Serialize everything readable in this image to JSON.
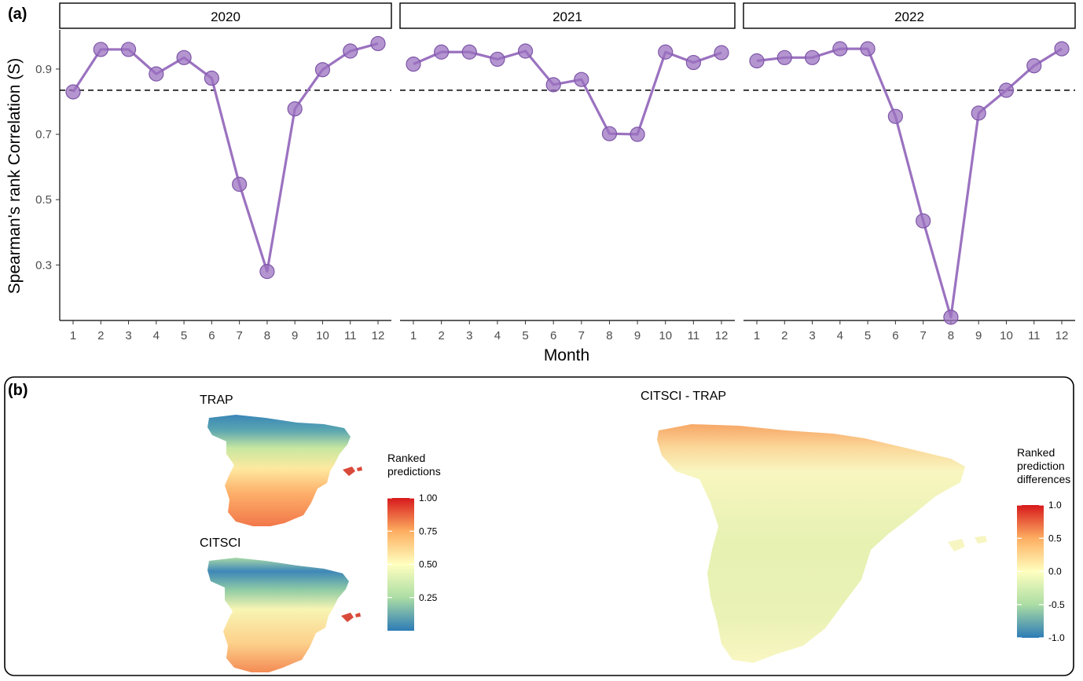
{
  "panel_a": {
    "label": "(a)"
  },
  "panel_b": {
    "label": "(b)"
  },
  "chart_data": {
    "type": "line",
    "facet_by": "year",
    "xlabel": "Month",
    "ylabel": "Spearman's rank Correlation (S)",
    "x": [
      1,
      2,
      3,
      4,
      5,
      6,
      7,
      8,
      9,
      10,
      11,
      12
    ],
    "x_tick_labels": [
      "1",
      "2",
      "3",
      "4",
      "5",
      "6",
      "7",
      "8",
      "9",
      "10",
      "11",
      "12"
    ],
    "ylim": [
      0.13,
      1.02
    ],
    "y_ticks": [
      0.3,
      0.5,
      0.7,
      0.9
    ],
    "y_tick_labels": [
      "0.3",
      "0.5",
      "0.7",
      "0.9"
    ],
    "reference_line": {
      "y": 0.835,
      "style": "dashed",
      "color": "#000000"
    },
    "series_color": "#9B72C0",
    "grid": false,
    "facets": [
      {
        "name": "2020",
        "values": [
          0.83,
          0.96,
          0.96,
          0.885,
          0.935,
          0.872,
          0.547,
          0.28,
          0.778,
          0.898,
          0.955,
          0.978
        ]
      },
      {
        "name": "2021",
        "values": [
          0.915,
          0.952,
          0.952,
          0.93,
          0.955,
          0.852,
          0.868,
          0.702,
          0.7,
          0.952,
          0.92,
          0.95
        ]
      },
      {
        "name": "2022",
        "values": [
          0.925,
          0.935,
          0.935,
          0.962,
          0.962,
          0.755,
          0.435,
          0.14,
          0.765,
          0.835,
          0.91,
          0.962
        ]
      }
    ]
  },
  "maps": {
    "trap": {
      "title": "TRAP"
    },
    "citsci": {
      "title": "CITSCI"
    },
    "diff": {
      "title": "CITSCI - TRAP"
    }
  },
  "legend_ranked": {
    "title_lines": [
      "Ranked",
      "predictions"
    ],
    "tick_labels": [
      "1.00",
      "0.75",
      "0.50",
      "0.25"
    ],
    "tick_values": [
      1.0,
      0.75,
      0.5,
      0.25
    ],
    "range": [
      0.0,
      1.0
    ],
    "colors": [
      "#2C7BB6",
      "#ABDDA4",
      "#FFFFBF",
      "#FDAE61",
      "#D7191C"
    ]
  },
  "legend_diff": {
    "title_lines": [
      "Ranked",
      "prediction",
      "differences"
    ],
    "tick_labels": [
      "1.0",
      "0.5",
      "0.0",
      "-0.5",
      "-1.0"
    ],
    "tick_values": [
      1.0,
      0.5,
      0.0,
      -0.5,
      -1.0
    ],
    "range": [
      -1.0,
      1.0
    ],
    "colors": [
      "#2C7BB6",
      "#ABDDA4",
      "#FFFFBF",
      "#FDAE61",
      "#D7191C"
    ]
  }
}
